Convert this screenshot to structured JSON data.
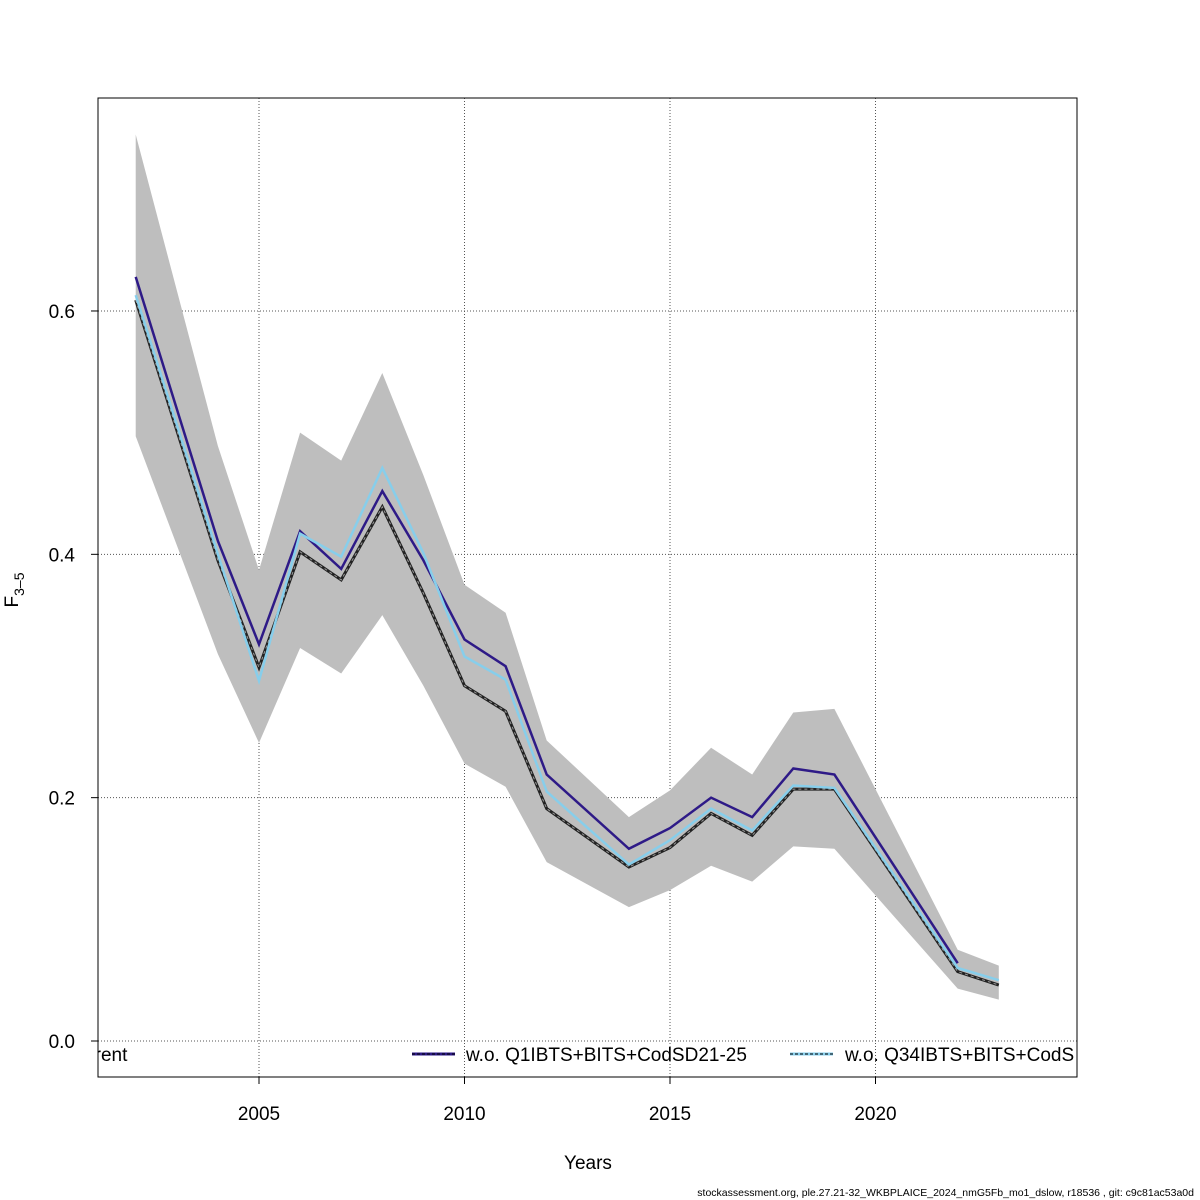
{
  "chart_data": {
    "type": "line",
    "title": "",
    "xlabel": "Years",
    "ylabel": "F",
    "ylabel_subscript": "3–5",
    "xlim": [
      2001.5,
      2024.8
    ],
    "ylim": [
      -0.03,
      0.775
    ],
    "grid": true,
    "x_ticks": [
      "2005",
      "2010",
      "2015",
      "2020"
    ],
    "y_ticks": [
      "0.0",
      "0.2",
      "0.4",
      "0.6"
    ],
    "legend_placement": "bottom",
    "x": [
      2002,
      2004,
      2005,
      2006,
      2007,
      2008,
      2009,
      2010,
      2011,
      2012,
      2014,
      2015,
      2016,
      2017,
      2018,
      2019,
      2022,
      2023
    ],
    "confidence_band": {
      "lower": [
        0.497,
        0.318,
        0.245,
        0.323,
        0.302,
        0.35,
        0.292,
        0.228,
        0.209,
        0.147,
        0.11,
        0.124,
        0.144,
        0.131,
        0.16,
        0.158,
        0.043,
        0.034
      ],
      "upper": [
        0.745,
        0.489,
        0.387,
        0.5,
        0.477,
        0.549,
        0.465,
        0.375,
        0.352,
        0.247,
        0.184,
        0.206,
        0.241,
        0.219,
        0.27,
        0.273,
        0.075,
        0.062
      ],
      "color": "#bebebe"
    },
    "series": [
      {
        "name": "Current",
        "color": "#000000",
        "style": "dashed",
        "values": [
          0.609,
          0.395,
          0.307,
          0.402,
          0.379,
          0.439,
          0.368,
          0.292,
          0.271,
          0.191,
          0.143,
          0.159,
          0.187,
          0.169,
          0.207,
          0.207,
          0.057,
          0.046
        ]
      },
      {
        "name": "w.o. Q1IBTS+BITS+CodSD21-25",
        "color": "#2e1a87",
        "style": "solid",
        "values": [
          0.628,
          0.411,
          0.326,
          0.419,
          0.388,
          0.452,
          0.395,
          0.33,
          0.308,
          0.219,
          0.158,
          0.175,
          0.2,
          0.184,
          0.224,
          0.219,
          0.064,
          null
        ]
      },
      {
        "name": "w.o. Q34IBTS+BITS+CodS",
        "color": "#87ceeb",
        "style": "solid",
        "values": [
          0.613,
          0.4,
          0.296,
          0.417,
          0.398,
          0.471,
          0.401,
          0.316,
          0.297,
          0.205,
          0.145,
          0.165,
          0.191,
          0.173,
          0.21,
          0.208,
          0.06,
          0.05
        ]
      }
    ],
    "legend": [
      "Current",
      "w.o. Q1IBTS+BITS+CodSD21-25",
      "w.o. Q34IBTS+BITS+CodS"
    ]
  },
  "footer": "stockassessment.org, ple.27.21-32_WKBPLAICE_2024_nmG5Fb_mo1_dslow, r18536 , git: c9c81ac53a0d"
}
